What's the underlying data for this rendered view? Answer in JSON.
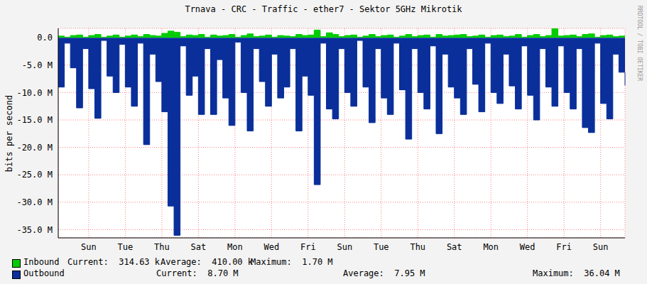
{
  "chart_data": {
    "type": "area",
    "title": "Trnava - CRC - Traffic - ether7 - Sektor 5GHz Mikrotik",
    "y_label": "bits per second",
    "annotations": [
      "RRDTOOL / TOBI OETIKER"
    ],
    "grid": true,
    "x": [
      null,
      null,
      null,
      null,
      null,
      "Sun",
      null,
      null,
      null,
      null,
      null,
      "Tue",
      null,
      null,
      null,
      null,
      null,
      "Thu",
      null,
      null,
      null,
      null,
      null,
      "Sat",
      null,
      null,
      null,
      null,
      null,
      "Mon",
      null,
      null,
      null,
      null,
      null,
      "Wed",
      null,
      null,
      null,
      null,
      null,
      "Fri",
      null,
      null,
      null,
      null,
      null,
      "Sun",
      null,
      null,
      null,
      null,
      null,
      "Tue",
      null,
      null,
      null,
      null,
      null,
      "Thu",
      null,
      null,
      null,
      null,
      null,
      "Sat",
      null,
      null,
      null,
      null,
      null,
      "Mon",
      null,
      null,
      null,
      null,
      null,
      "Wed",
      null,
      null,
      null,
      null,
      null,
      "Fri",
      null,
      null,
      null,
      null,
      null,
      "Sun",
      null,
      null,
      null,
      null
    ],
    "ylim": [
      -36.5,
      1.7
    ],
    "yticks": [
      {
        "value": 0,
        "label": "0.0"
      },
      {
        "value": -5,
        "label": "-5.0 M"
      },
      {
        "value": -10,
        "label": "-10.0 M"
      },
      {
        "value": -15,
        "label": "-15.0 M"
      },
      {
        "value": -20,
        "label": "-20.0 M"
      },
      {
        "value": -25,
        "label": "-25.0 M"
      },
      {
        "value": -30,
        "label": "-30.0 M"
      },
      {
        "value": -35,
        "label": "-35.0 M"
      }
    ],
    "series": [
      {
        "name": "Inbound",
        "color": "#00cc00",
        "stats": [
          [
            "Current:",
            "314.63 k"
          ],
          [
            "Average:",
            "410.00 k"
          ],
          [
            "Maximum:",
            "1.70 M"
          ]
        ],
        "values": [
          0.3,
          0.1,
          0.4,
          0.5,
          0.1,
          0.4,
          0.6,
          0.1,
          0.3,
          0.5,
          0.1,
          0.3,
          0.5,
          0.2,
          0.6,
          0.4,
          0.3,
          0.8,
          1.2,
          1.0,
          0.2,
          0.5,
          0.4,
          0.6,
          0.1,
          0.5,
          0.3,
          0.4,
          0.6,
          0.1,
          0.4,
          0.7,
          0.2,
          0.3,
          0.5,
          0.1,
          0.4,
          0.3,
          0.2,
          0.6,
          0.4,
          0.5,
          1.4,
          0.2,
          0.9,
          0.6,
          0.2,
          0.4,
          0.5,
          0.1,
          0.3,
          0.6,
          0.2,
          0.4,
          0.5,
          0.1,
          0.3,
          0.6,
          0.2,
          0.4,
          0.5,
          0.1,
          0.6,
          0.3,
          0.4,
          0.5,
          0.6,
          0.2,
          0.3,
          0.5,
          0.1,
          0.4,
          0.5,
          0.2,
          0.3,
          0.6,
          0.1,
          0.4,
          0.6,
          0.2,
          0.4,
          1.7,
          0.3,
          0.4,
          0.5,
          0.2,
          0.6,
          0.7,
          0.1,
          0.4,
          0.5,
          0.2,
          0.3,
          0.31
        ]
      },
      {
        "name": "Outbound",
        "color": "#0a2f9a",
        "stats": [
          [
            "Current:",
            "8.70 M"
          ],
          [
            "Average:",
            "7.95 M"
          ],
          [
            "Maximum:",
            "36.04 M"
          ]
        ],
        "values": [
          -9,
          -1,
          -5.5,
          -12.8,
          -2,
          -9.3,
          -14.7,
          -0.5,
          -7,
          -10,
          -1.2,
          -9,
          -12.5,
          -1,
          -19.5,
          -3,
          -8,
          -13.5,
          -30.7,
          -36.04,
          -1.5,
          -10.5,
          -7,
          -14,
          -2,
          -14,
          -4,
          -11,
          -16,
          -0.8,
          -10,
          -17,
          -2,
          -8,
          -12.5,
          -3,
          -11,
          -9,
          -2,
          -17,
          -7,
          -10.5,
          -26.8,
          -1,
          -13,
          -14.8,
          -2,
          -10,
          -12.5,
          -0.5,
          -9,
          -15.5,
          -2,
          -11,
          -14,
          -1,
          -9.5,
          -18.5,
          -2,
          -10,
          -13,
          -1.5,
          -17.5,
          -3,
          -9,
          -11,
          -14,
          -2,
          -8.5,
          -13.5,
          -1,
          -10,
          -12,
          -3,
          -8.8,
          -13,
          -1.5,
          -10.5,
          -15,
          -2,
          -9,
          -12.5,
          -1.5,
          -10,
          -13,
          -2,
          -16.4,
          -17.3,
          -1,
          -12,
          -14.8,
          -3,
          -6.3,
          -8.7
        ]
      }
    ]
  }
}
